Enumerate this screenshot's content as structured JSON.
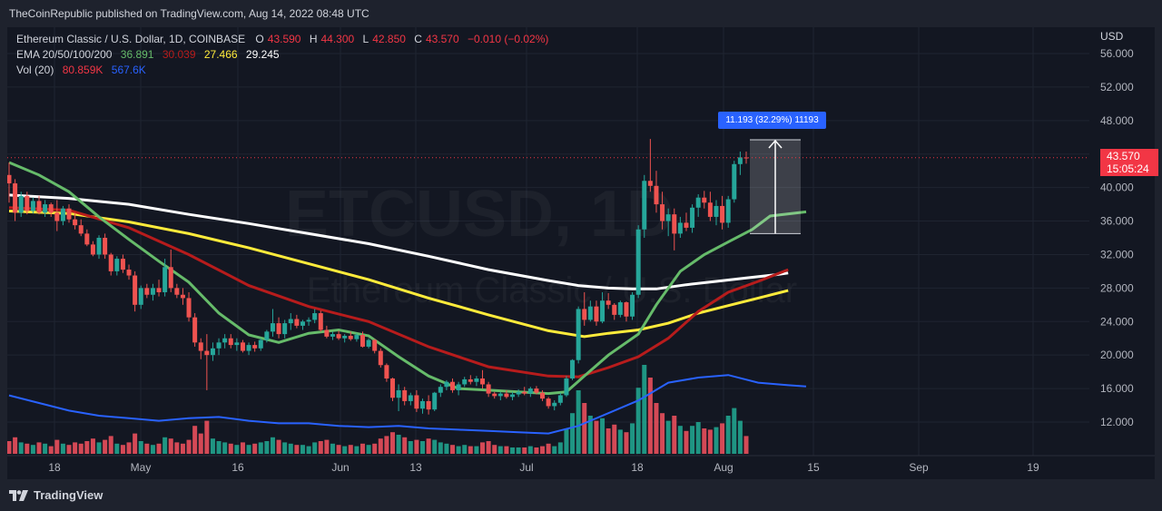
{
  "banner": "TheCoinRepublic published on TradingView.com, Aug 14, 2022 08:48 UTC",
  "watermark": {
    "big": "ETCUSD, 1D",
    "small": "Ethereum Classic / U.S. Dollar"
  },
  "legend": {
    "symbol": "Ethereum Classic / U.S. Dollar, 1D, COINBASE",
    "ohlc": [
      {
        "k": "O",
        "v": "43.590"
      },
      {
        "k": "H",
        "v": "44.300"
      },
      {
        "k": "L",
        "v": "42.850"
      },
      {
        "k": "C",
        "v": "43.570"
      }
    ],
    "change": "−0.010 (−0.02%)",
    "ema_label": "EMA 20/50/100/200",
    "ema_values": [
      {
        "v": "36.891",
        "color": "#66bb6a"
      },
      {
        "v": "30.039",
        "color": "#b71c1c"
      },
      {
        "v": "27.466",
        "color": "#ffeb3b"
      },
      {
        "v": "29.245",
        "color": "#ffffff"
      }
    ],
    "vol_label": "Vol (20)",
    "vol_values": [
      {
        "v": "80.859K",
        "color": "#f23645"
      },
      {
        "v": "567.6K",
        "color": "#2962ff"
      }
    ]
  },
  "axis": {
    "currency": "USD",
    "y_ticks": [
      "56.000",
      "52.000",
      "48.000",
      "44.000",
      "40.000",
      "36.000",
      "32.000",
      "28.000",
      "24.000",
      "20.000",
      "16.000",
      "12.000"
    ],
    "x_ticks": [
      "18",
      "May",
      "16",
      "Jun",
      "13",
      "Jul",
      "18",
      "Aug",
      "15",
      "Sep",
      "19"
    ]
  },
  "last_price": {
    "price": "43.570",
    "countdown": "15:05:24"
  },
  "measure": {
    "label": "11.193 (32.29%) 11193"
  },
  "footer": {
    "brand": "TradingView"
  },
  "chart_data": {
    "type": "candlestick",
    "title": "Ethereum Classic / U.S. Dollar, 1D, COINBASE",
    "ylim": [
      8.0,
      58.0
    ],
    "colors": {
      "up": "#26a69a",
      "down": "#ef5350",
      "ema20": "#66bb6a",
      "ema50": "#b71c1c",
      "ema100": "#ffeb3b",
      "ema200": "#ffffff",
      "vol_ma": "#2962ff"
    },
    "candles": [
      [
        41.5,
        43.0,
        38.2,
        40.5,
        1.0
      ],
      [
        40.5,
        41.0,
        36.0,
        37.0,
        1.3
      ],
      [
        37.0,
        39.5,
        36.5,
        39.0,
        0.9
      ],
      [
        39.0,
        39.5,
        36.8,
        37.2,
        0.8
      ],
      [
        37.2,
        38.8,
        36.9,
        38.4,
        0.7
      ],
      [
        38.4,
        39.0,
        36.8,
        37.0,
        0.9
      ],
      [
        37.0,
        38.5,
        36.5,
        38.0,
        0.8
      ],
      [
        38.0,
        38.2,
        36.5,
        37.0,
        0.6
      ],
      [
        37.0,
        38.5,
        34.8,
        36.0,
        1.1
      ],
      [
        36.0,
        37.8,
        35.5,
        37.5,
        0.8
      ],
      [
        37.5,
        38.0,
        35.8,
        36.2,
        0.7
      ],
      [
        36.2,
        37.0,
        35.0,
        35.5,
        0.9
      ],
      [
        35.5,
        36.2,
        34.2,
        34.5,
        0.8
      ],
      [
        34.5,
        35.0,
        33.0,
        33.2,
        1.0
      ],
      [
        33.2,
        33.6,
        31.8,
        32.0,
        1.2
      ],
      [
        32.0,
        34.3,
        31.5,
        34.0,
        0.9
      ],
      [
        34.0,
        34.5,
        31.5,
        32.0,
        1.1
      ],
      [
        32.0,
        32.2,
        29.5,
        30.0,
        1.4
      ],
      [
        30.0,
        31.8,
        29.5,
        31.5,
        0.8
      ],
      [
        31.5,
        32.0,
        29.8,
        30.2,
        0.7
      ],
      [
        30.2,
        30.8,
        29.0,
        29.5,
        0.9
      ],
      [
        29.5,
        30.0,
        25.2,
        26.0,
        1.6
      ],
      [
        26.0,
        28.3,
        25.5,
        28.0,
        1.0
      ],
      [
        28.0,
        28.5,
        26.8,
        27.2,
        0.8
      ],
      [
        27.2,
        28.5,
        26.5,
        28.0,
        0.7
      ],
      [
        28.0,
        29.0,
        27.0,
        27.5,
        0.8
      ],
      [
        27.5,
        31.5,
        27.0,
        30.5,
        1.3
      ],
      [
        30.5,
        32.6,
        27.5,
        28.0,
        1.2
      ],
      [
        28.0,
        28.5,
        26.8,
        27.2,
        0.9
      ],
      [
        27.2,
        28.0,
        26.0,
        26.8,
        0.8
      ],
      [
        26.8,
        27.5,
        24.0,
        24.5,
        1.1
      ],
      [
        24.5,
        25.0,
        21.0,
        21.5,
        2.2
      ],
      [
        21.5,
        22.0,
        19.5,
        20.5,
        1.6
      ],
      [
        20.5,
        22.5,
        15.8,
        20.0,
        2.6
      ],
      [
        20.0,
        21.5,
        19.3,
        20.8,
        1.2
      ],
      [
        20.8,
        22.0,
        20.0,
        21.5,
        1.0
      ],
      [
        21.5,
        22.5,
        20.8,
        22.0,
        0.9
      ],
      [
        22.0,
        22.5,
        20.8,
        21.2,
        0.8
      ],
      [
        21.2,
        22.0,
        20.5,
        21.5,
        0.7
      ],
      [
        21.5,
        21.8,
        20.3,
        20.5,
        0.9
      ],
      [
        20.5,
        21.5,
        20.0,
        21.2,
        0.7
      ],
      [
        21.2,
        21.6,
        20.4,
        20.8,
        0.8
      ],
      [
        20.8,
        22.0,
        20.5,
        21.8,
        0.9
      ],
      [
        21.8,
        23.0,
        21.5,
        22.8,
        1.0
      ],
      [
        22.8,
        25.5,
        22.2,
        23.8,
        1.3
      ],
      [
        23.8,
        24.5,
        22.0,
        22.5,
        1.1
      ],
      [
        22.5,
        24.2,
        22.0,
        23.8,
        0.9
      ],
      [
        23.8,
        25.0,
        23.0,
        24.3,
        0.8
      ],
      [
        24.3,
        24.8,
        23.2,
        23.5,
        0.7
      ],
      [
        23.5,
        24.2,
        23.0,
        24.0,
        0.7
      ],
      [
        24.0,
        24.5,
        23.5,
        24.2,
        0.6
      ],
      [
        24.2,
        25.5,
        23.8,
        25.0,
        0.9
      ],
      [
        25.0,
        25.3,
        22.8,
        23.0,
        1.0
      ],
      [
        23.0,
        23.5,
        22.0,
        22.2,
        1.1
      ],
      [
        22.2,
        22.8,
        21.8,
        22.5,
        0.8
      ],
      [
        22.5,
        22.9,
        21.8,
        22.0,
        0.7
      ],
      [
        22.0,
        22.5,
        21.5,
        22.3,
        0.6
      ],
      [
        22.3,
        22.8,
        21.7,
        21.9,
        0.7
      ],
      [
        21.9,
        22.6,
        21.6,
        22.4,
        0.6
      ],
      [
        22.4,
        22.8,
        20.9,
        21.0,
        0.8
      ],
      [
        21.0,
        22.0,
        20.8,
        21.8,
        0.7
      ],
      [
        21.8,
        21.9,
        20.2,
        20.5,
        0.8
      ],
      [
        20.5,
        20.8,
        18.5,
        18.8,
        1.2
      ],
      [
        18.8,
        19.0,
        16.8,
        17.2,
        1.4
      ],
      [
        17.2,
        17.3,
        14.5,
        14.9,
        1.7
      ],
      [
        14.9,
        16.5,
        13.3,
        15.8,
        1.5
      ],
      [
        15.8,
        16.2,
        14.0,
        14.5,
        1.3
      ],
      [
        14.5,
        15.5,
        14.0,
        15.2,
        1.0
      ],
      [
        15.2,
        15.8,
        13.2,
        13.6,
        1.1
      ],
      [
        13.6,
        14.8,
        13.0,
        14.5,
        1.0
      ],
      [
        14.5,
        15.2,
        12.9,
        13.5,
        1.2
      ],
      [
        13.5,
        15.6,
        13.3,
        15.5,
        1.1
      ],
      [
        15.5,
        16.5,
        15.0,
        16.2,
        0.9
      ],
      [
        16.2,
        17.0,
        15.8,
        16.8,
        0.8
      ],
      [
        16.8,
        17.2,
        15.5,
        15.8,
        0.7
      ],
      [
        15.8,
        16.8,
        15.2,
        16.5,
        0.6
      ],
      [
        16.5,
        17.4,
        16.2,
        17.1,
        0.7
      ],
      [
        17.1,
        17.6,
        16.5,
        16.8,
        0.6
      ],
      [
        16.8,
        17.5,
        16.3,
        17.2,
        0.6
      ],
      [
        17.2,
        18.2,
        16.0,
        16.5,
        0.9
      ],
      [
        16.5,
        16.8,
        15.0,
        15.4,
        1.0
      ],
      [
        15.4,
        15.6,
        14.8,
        15.1,
        0.7
      ],
      [
        15.1,
        15.6,
        14.6,
        15.4,
        0.6
      ],
      [
        15.4,
        15.8,
        14.8,
        15.0,
        0.6
      ],
      [
        15.0,
        15.6,
        14.6,
        15.3,
        0.5
      ],
      [
        15.3,
        15.9,
        15.0,
        15.6,
        0.5
      ],
      [
        15.6,
        16.2,
        15.2,
        15.4,
        0.5
      ],
      [
        15.4,
        16.2,
        15.0,
        16.0,
        0.6
      ],
      [
        16.0,
        16.3,
        15.3,
        15.5,
        0.5
      ],
      [
        15.5,
        15.8,
        14.5,
        14.8,
        0.6
      ],
      [
        14.8,
        15.0,
        13.6,
        13.9,
        0.8
      ],
      [
        13.9,
        14.6,
        13.4,
        14.3,
        0.6
      ],
      [
        14.3,
        15.5,
        14.0,
        15.2,
        0.9
      ],
      [
        15.2,
        17.5,
        15.0,
        17.2,
        2.0
      ],
      [
        17.2,
        19.5,
        17.0,
        19.4,
        3.2
      ],
      [
        19.4,
        25.8,
        19.0,
        25.5,
        5.0
      ],
      [
        25.5,
        27.5,
        23.5,
        24.2,
        4.0
      ],
      [
        24.2,
        26.5,
        24.0,
        25.8,
        3.0
      ],
      [
        25.8,
        26.5,
        23.5,
        24.0,
        2.6
      ],
      [
        24.0,
        27.5,
        23.8,
        26.5,
        2.8
      ],
      [
        26.5,
        27.4,
        25.5,
        26.0,
        2.0
      ],
      [
        26.0,
        26.2,
        24.2,
        24.8,
        2.3
      ],
      [
        24.8,
        26.5,
        24.5,
        26.3,
        1.9
      ],
      [
        26.3,
        26.4,
        24.0,
        24.6,
        1.7
      ],
      [
        24.6,
        27.5,
        24.2,
        27.2,
        2.4
      ],
      [
        27.2,
        35.5,
        26.8,
        35.0,
        5.2
      ],
      [
        35.0,
        41.5,
        34.0,
        40.8,
        7.0
      ],
      [
        40.8,
        45.8,
        39.5,
        40.2,
        6.0
      ],
      [
        40.2,
        42.0,
        37.0,
        38.0,
        4.0
      ],
      [
        38.0,
        39.5,
        35.0,
        36.0,
        3.2
      ],
      [
        36.0,
        37.5,
        34.2,
        36.8,
        2.6
      ],
      [
        36.8,
        37.5,
        32.5,
        34.5,
        3.0
      ],
      [
        34.5,
        36.5,
        34.0,
        35.8,
        2.2
      ],
      [
        35.8,
        37.0,
        34.8,
        35.2,
        1.8
      ],
      [
        35.2,
        38.0,
        34.6,
        37.6,
        2.2
      ],
      [
        37.6,
        39.2,
        36.5,
        38.8,
        2.5
      ],
      [
        38.8,
        39.6,
        37.5,
        38.2,
        2.0
      ],
      [
        38.2,
        39.5,
        36.0,
        36.5,
        1.9
      ],
      [
        36.5,
        38.5,
        35.5,
        37.8,
        2.1
      ],
      [
        37.8,
        39.0,
        35.0,
        35.8,
        2.4
      ],
      [
        35.8,
        39.0,
        35.2,
        38.6,
        3.0
      ],
      [
        38.6,
        43.2,
        38.2,
        42.8,
        3.6
      ],
      [
        42.8,
        44.3,
        41.5,
        43.6,
        2.6
      ],
      [
        43.59,
        44.3,
        42.85,
        43.57,
        1.4
      ]
    ],
    "ema20": [
      [
        0,
        43.0
      ],
      [
        5,
        41.5
      ],
      [
        10,
        39.5
      ],
      [
        15,
        36.5
      ],
      [
        20,
        33.8
      ],
      [
        25,
        31.2
      ],
      [
        30,
        28.7
      ],
      [
        35,
        25.0
      ],
      [
        40,
        22.4
      ],
      [
        45,
        21.5
      ],
      [
        50,
        22.6
      ],
      [
        55,
        23.0
      ],
      [
        60,
        22.3
      ],
      [
        65,
        19.8
      ],
      [
        70,
        17.5
      ],
      [
        75,
        16.0
      ],
      [
        80,
        15.8
      ],
      [
        85,
        15.6
      ],
      [
        90,
        15.4
      ],
      [
        93,
        15.6
      ],
      [
        96,
        17.5
      ],
      [
        100,
        20.0
      ],
      [
        105,
        22.5
      ],
      [
        108,
        26.0
      ],
      [
        112,
        30.0
      ],
      [
        116,
        32.0
      ],
      [
        120,
        33.5
      ],
      [
        124,
        35.0
      ],
      [
        127,
        36.6
      ],
      [
        133,
        37.1
      ]
    ],
    "ema50": [
      [
        0,
        37.6
      ],
      [
        10,
        37.3
      ],
      [
        20,
        35.2
      ],
      [
        30,
        32.0
      ],
      [
        40,
        28.3
      ],
      [
        50,
        25.8
      ],
      [
        60,
        24.0
      ],
      [
        70,
        21.0
      ],
      [
        80,
        18.6
      ],
      [
        90,
        17.5
      ],
      [
        95,
        17.4
      ],
      [
        100,
        18.5
      ],
      [
        105,
        19.8
      ],
      [
        110,
        22.0
      ],
      [
        115,
        25.2
      ],
      [
        120,
        27.5
      ],
      [
        125,
        28.8
      ],
      [
        130,
        30.2
      ]
    ],
    "ema100": [
      [
        0,
        37.2
      ],
      [
        10,
        36.9
      ],
      [
        20,
        35.9
      ],
      [
        30,
        34.5
      ],
      [
        40,
        32.8
      ],
      [
        50,
        30.9
      ],
      [
        60,
        29.0
      ],
      [
        70,
        26.8
      ],
      [
        80,
        24.8
      ],
      [
        90,
        22.9
      ],
      [
        96,
        22.2
      ],
      [
        100,
        22.6
      ],
      [
        105,
        23.0
      ],
      [
        110,
        23.8
      ],
      [
        115,
        25.0
      ],
      [
        120,
        25.9
      ],
      [
        125,
        26.8
      ],
      [
        130,
        27.7
      ]
    ],
    "ema200": [
      [
        0,
        39.1
      ],
      [
        10,
        38.7
      ],
      [
        20,
        38.0
      ],
      [
        30,
        36.8
      ],
      [
        40,
        35.7
      ],
      [
        50,
        34.5
      ],
      [
        60,
        33.3
      ],
      [
        70,
        31.8
      ],
      [
        80,
        30.2
      ],
      [
        90,
        28.9
      ],
      [
        95,
        28.3
      ],
      [
        100,
        28.0
      ],
      [
        104,
        27.9
      ],
      [
        108,
        27.9
      ],
      [
        113,
        28.4
      ],
      [
        118,
        28.8
      ],
      [
        123,
        29.2
      ],
      [
        128,
        29.6
      ],
      [
        130,
        29.8
      ]
    ],
    "vol_ma": [
      [
        0,
        4.6
      ],
      [
        5,
        4.0
      ],
      [
        10,
        3.4
      ],
      [
        15,
        3.0
      ],
      [
        20,
        2.8
      ],
      [
        25,
        2.6
      ],
      [
        30,
        2.8
      ],
      [
        35,
        2.9
      ],
      [
        40,
        2.6
      ],
      [
        45,
        2.4
      ],
      [
        50,
        2.4
      ],
      [
        55,
        2.2
      ],
      [
        60,
        2.1
      ],
      [
        65,
        2.2
      ],
      [
        70,
        2.0
      ],
      [
        75,
        1.9
      ],
      [
        80,
        1.8
      ],
      [
        85,
        1.7
      ],
      [
        90,
        1.6
      ],
      [
        95,
        2.2
      ],
      [
        100,
        3.2
      ],
      [
        105,
        4.2
      ],
      [
        110,
        5.6
      ],
      [
        115,
        6.0
      ],
      [
        120,
        6.2
      ],
      [
        125,
        5.6
      ],
      [
        130,
        5.4
      ],
      [
        133,
        5.3
      ]
    ],
    "measure_range": [
      34.5,
      45.7
    ],
    "price_line": 43.57
  }
}
